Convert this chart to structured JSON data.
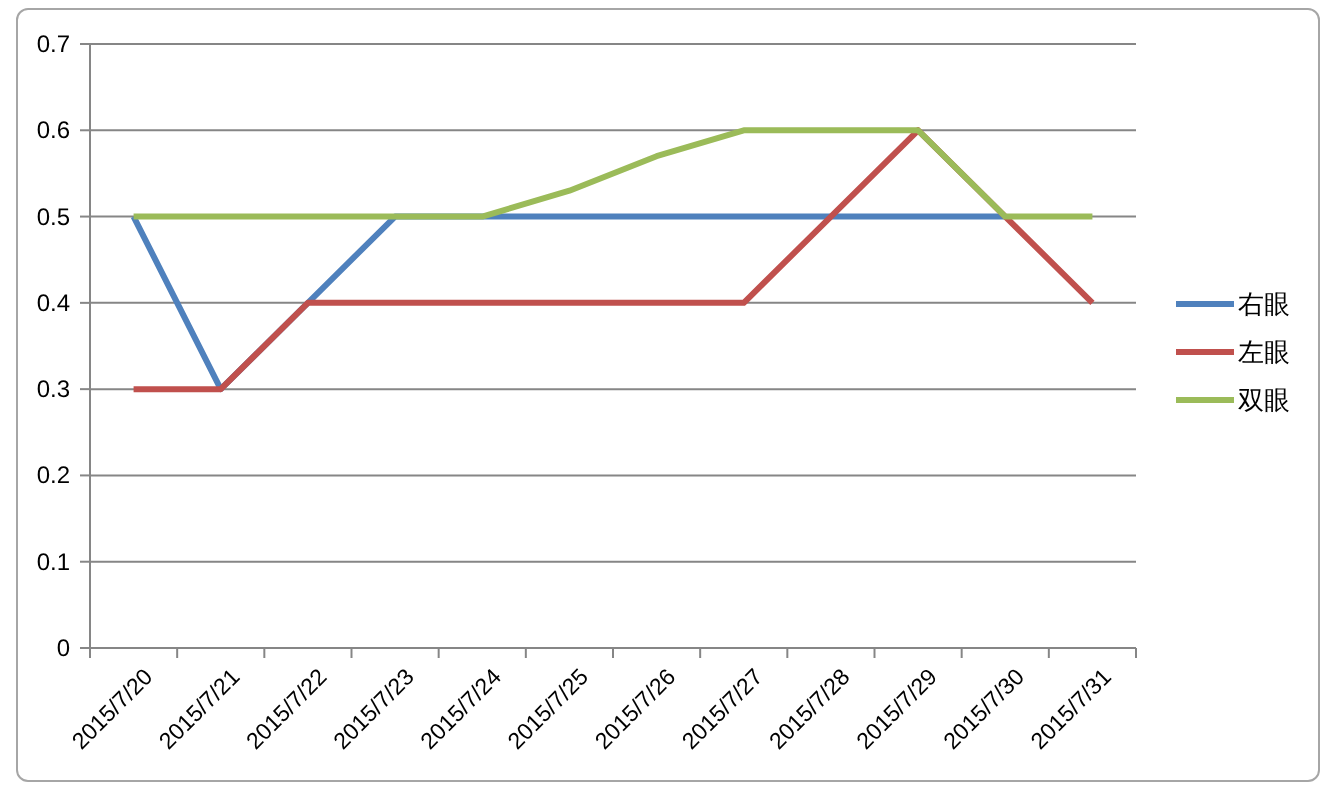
{
  "chart_data": {
    "type": "line",
    "categories": [
      "2015/7/20",
      "2015/7/21",
      "2015/7/22",
      "2015/7/23",
      "2015/7/24",
      "2015/7/25",
      "2015/7/26",
      "2015/7/27",
      "2015/7/28",
      "2015/7/29",
      "2015/7/30",
      "2015/7/31"
    ],
    "series": [
      {
        "name": "右眼",
        "color": "#4f81bd",
        "values": [
          0.5,
          0.3,
          0.4,
          0.5,
          0.5,
          0.5,
          0.5,
          0.5,
          0.5,
          0.5,
          0.5,
          null
        ]
      },
      {
        "name": "左眼",
        "color": "#c0504d",
        "values": [
          0.3,
          0.3,
          0.4,
          0.4,
          0.4,
          0.4,
          0.4,
          0.4,
          0.5,
          0.6,
          0.5,
          0.4
        ]
      },
      {
        "name": "双眼",
        "color": "#9bbb59",
        "values": [
          0.5,
          0.5,
          0.5,
          0.5,
          0.5,
          0.53,
          0.57,
          0.6,
          0.6,
          0.6,
          0.5,
          0.5
        ]
      }
    ],
    "ylim": [
      0,
      0.7
    ],
    "yticks": [
      0,
      0.1,
      0.2,
      0.3,
      0.4,
      0.5,
      0.6,
      0.7
    ],
    "grid": "y",
    "legend": "right"
  }
}
